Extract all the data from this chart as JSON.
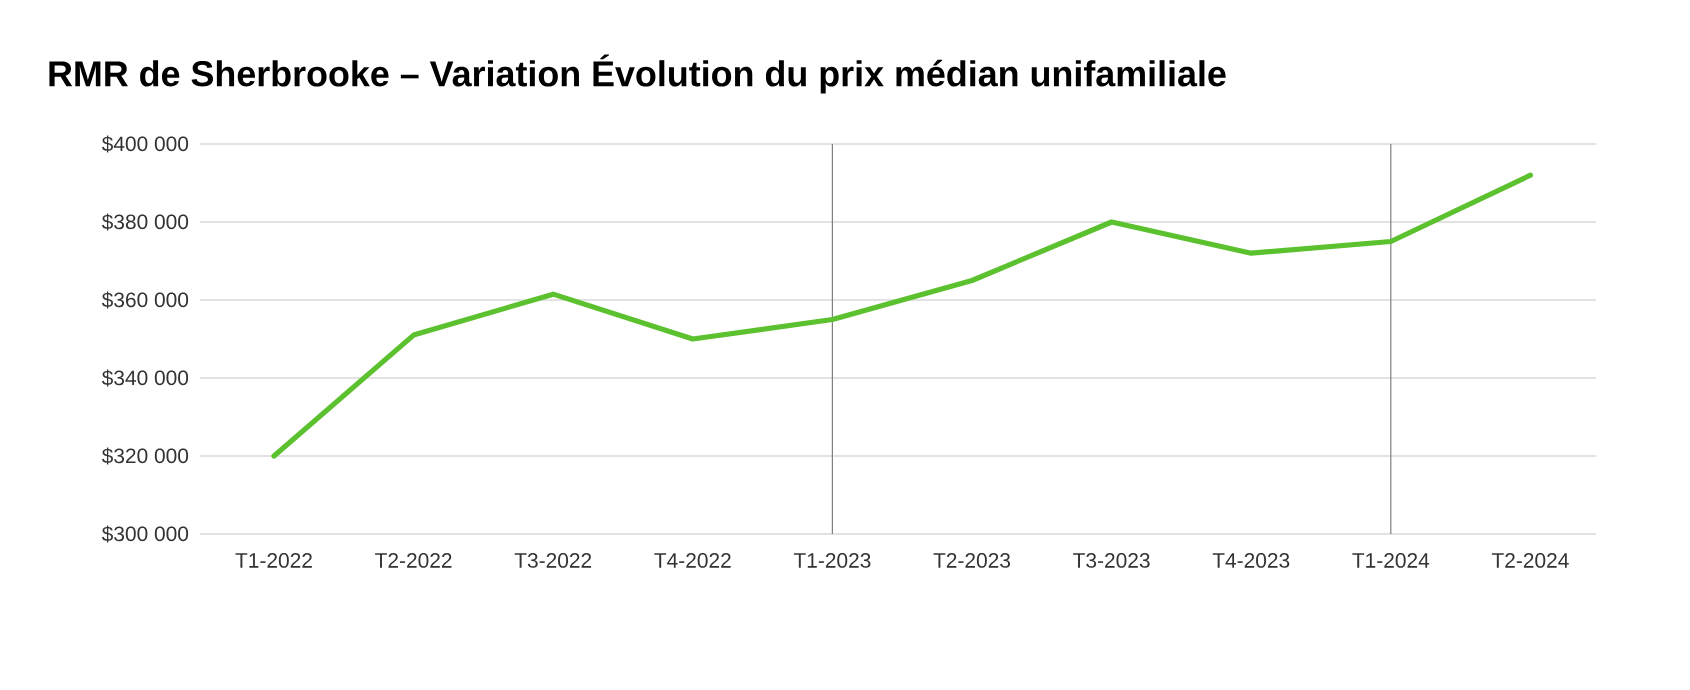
{
  "chart_data": {
    "type": "line",
    "title": "RMR de Sherbrooke – Variation Évolution du prix médian unifamiliale",
    "categories": [
      "T1-2022",
      "T2-2022",
      "T3-2022",
      "T4-2022",
      "T1-2023",
      "T2-2023",
      "T3-2023",
      "T4-2023",
      "T1-2024",
      "T2-2024"
    ],
    "series": [
      {
        "color": "#5cc12e",
        "values": [
          320000,
          351000,
          361500,
          350000,
          355000,
          365000,
          380000,
          372000,
          375000,
          392000
        ]
      }
    ],
    "ylim": [
      300000,
      400000
    ],
    "yticks": [
      {
        "value": 300000,
        "label": "$300 000"
      },
      {
        "value": 320000,
        "label": "$320 000"
      },
      {
        "value": 340000,
        "label": "$340 000"
      },
      {
        "value": 360000,
        "label": "$360 000"
      },
      {
        "value": 380000,
        "label": "$380 000"
      },
      {
        "value": 400000,
        "label": "$400 000"
      }
    ],
    "grid": "y",
    "marker": "none",
    "line_style": "solid",
    "ref_lines": [
      {
        "axis": "x",
        "value": "T1-2023",
        "color": "#808080"
      },
      {
        "axis": "x",
        "value": "T1-2024",
        "color": "#808080"
      }
    ]
  }
}
